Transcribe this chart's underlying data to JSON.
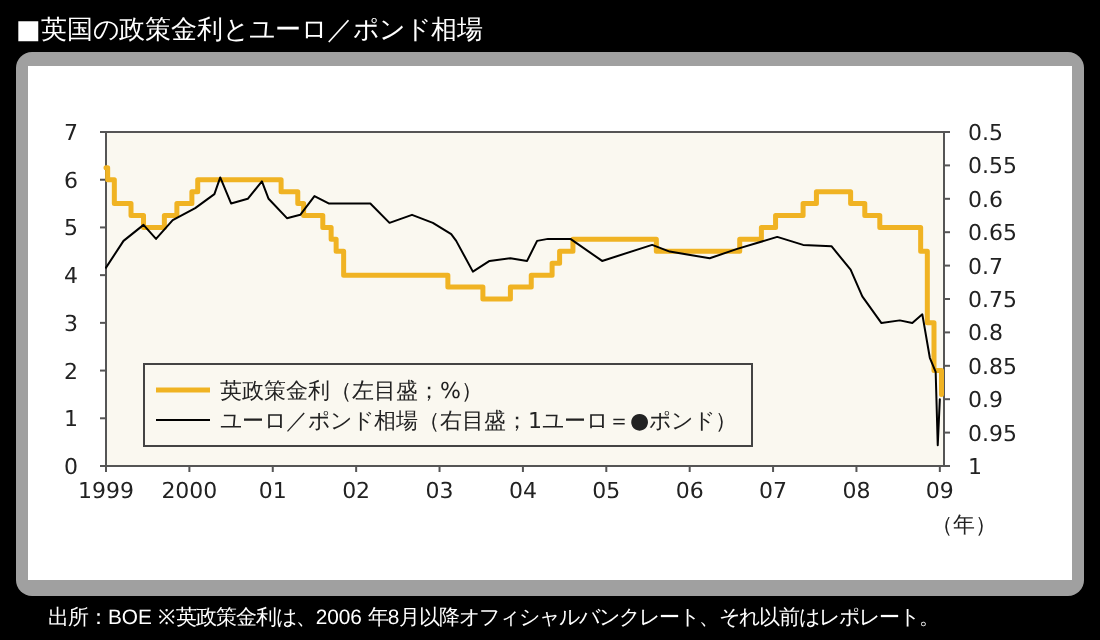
{
  "chart_data": {
    "type": "line",
    "title": "■英国の政策金利とユーロ／ポンド相場",
    "xlabel": "（年）",
    "annotations": [
      "出所：BOE ※英政策金利は、2006 年8月以降オフィシャルバンクレート、それ以前はレポレート。"
    ],
    "xlim": [
      1999,
      2009.05
    ],
    "xticks": [
      {
        "value": 1999,
        "label": "1999"
      },
      {
        "value": 2000,
        "label": "2000"
      },
      {
        "value": 2001,
        "label": "01"
      },
      {
        "value": 2002,
        "label": "02"
      },
      {
        "value": 2003,
        "label": "03"
      },
      {
        "value": 2004,
        "label": "04"
      },
      {
        "value": 2005,
        "label": "05"
      },
      {
        "value": 2006,
        "label": "06"
      },
      {
        "value": 2007,
        "label": "07"
      },
      {
        "value": 2008,
        "label": "08"
      },
      {
        "value": 2009,
        "label": "09"
      }
    ],
    "ylim": [
      0,
      7
    ],
    "yticks": [
      0,
      1,
      2,
      3,
      4,
      5,
      6,
      7
    ],
    "y2lim": [
      1,
      0.5
    ],
    "y2ticks": [
      0.5,
      0.55,
      0.6,
      0.65,
      0.7,
      0.75,
      0.8,
      0.85,
      0.9,
      0.95,
      1
    ],
    "legend": "bottom left",
    "series": [
      {
        "name": "英政策金利（左目盛；%）",
        "type": "step",
        "color": "#f0b323",
        "x": [
          1999.0,
          1999.02,
          1999.1,
          1999.3,
          1999.45,
          1999.7,
          1999.85,
          2000.03,
          2000.1,
          2001.1,
          2001.3,
          2001.37,
          2001.6,
          2001.7,
          2001.76,
          2001.85,
          2003.1,
          2003.52,
          2003.85,
          2004.1,
          2004.35,
          2004.44,
          2004.6,
          2005.6,
          2006.6,
          2006.86,
          2007.03,
          2007.36,
          2007.52,
          2007.93,
          2008.1,
          2008.28,
          2008.77,
          2008.85,
          2008.93,
          2009.02
        ],
        "values": [
          6.25,
          6.0,
          5.5,
          5.25,
          5.0,
          5.25,
          5.5,
          5.75,
          6.0,
          5.75,
          5.5,
          5.25,
          5.0,
          4.75,
          4.5,
          4.0,
          3.75,
          3.5,
          3.75,
          4.0,
          4.25,
          4.5,
          4.75,
          4.5,
          4.75,
          5.0,
          5.25,
          5.5,
          5.75,
          5.5,
          5.25,
          5.0,
          4.5,
          3.0,
          2.0,
          1.5
        ]
      },
      {
        "name": "ユーロ／ポンド相場（右目盛；1ユーロ＝●ポンド）",
        "color": "#000000",
        "axis": "y2",
        "x": [
          1999.0,
          1999.21,
          1999.45,
          1999.6,
          1999.8,
          2000.07,
          2000.3,
          2000.37,
          2000.5,
          2000.7,
          2000.87,
          2000.95,
          2001.17,
          2001.33,
          2001.5,
          2001.67,
          2001.9,
          2002.17,
          2002.4,
          2002.67,
          2002.92,
          2003.14,
          2003.2,
          2003.4,
          2003.6,
          2003.85,
          2004.05,
          2004.17,
          2004.3,
          2004.57,
          2004.95,
          2005.55,
          2005.76,
          2006.24,
          2006.57,
          2007.05,
          2007.36,
          2007.7,
          2007.93,
          2008.07,
          2008.3,
          2008.52,
          2008.67,
          2008.79,
          2008.88,
          2008.95,
          2008.975,
          2009.0
        ],
        "values": [
          0.703,
          0.663,
          0.639,
          0.66,
          0.632,
          0.614,
          0.593,
          0.568,
          0.607,
          0.6,
          0.574,
          0.6,
          0.629,
          0.624,
          0.596,
          0.607,
          0.607,
          0.607,
          0.636,
          0.624,
          0.636,
          0.653,
          0.663,
          0.709,
          0.693,
          0.689,
          0.693,
          0.663,
          0.66,
          0.66,
          0.693,
          0.669,
          0.679,
          0.689,
          0.675,
          0.657,
          0.669,
          0.671,
          0.706,
          0.746,
          0.786,
          0.782,
          0.786,
          0.773,
          0.838,
          0.859,
          0.969,
          0.9
        ]
      }
    ]
  }
}
